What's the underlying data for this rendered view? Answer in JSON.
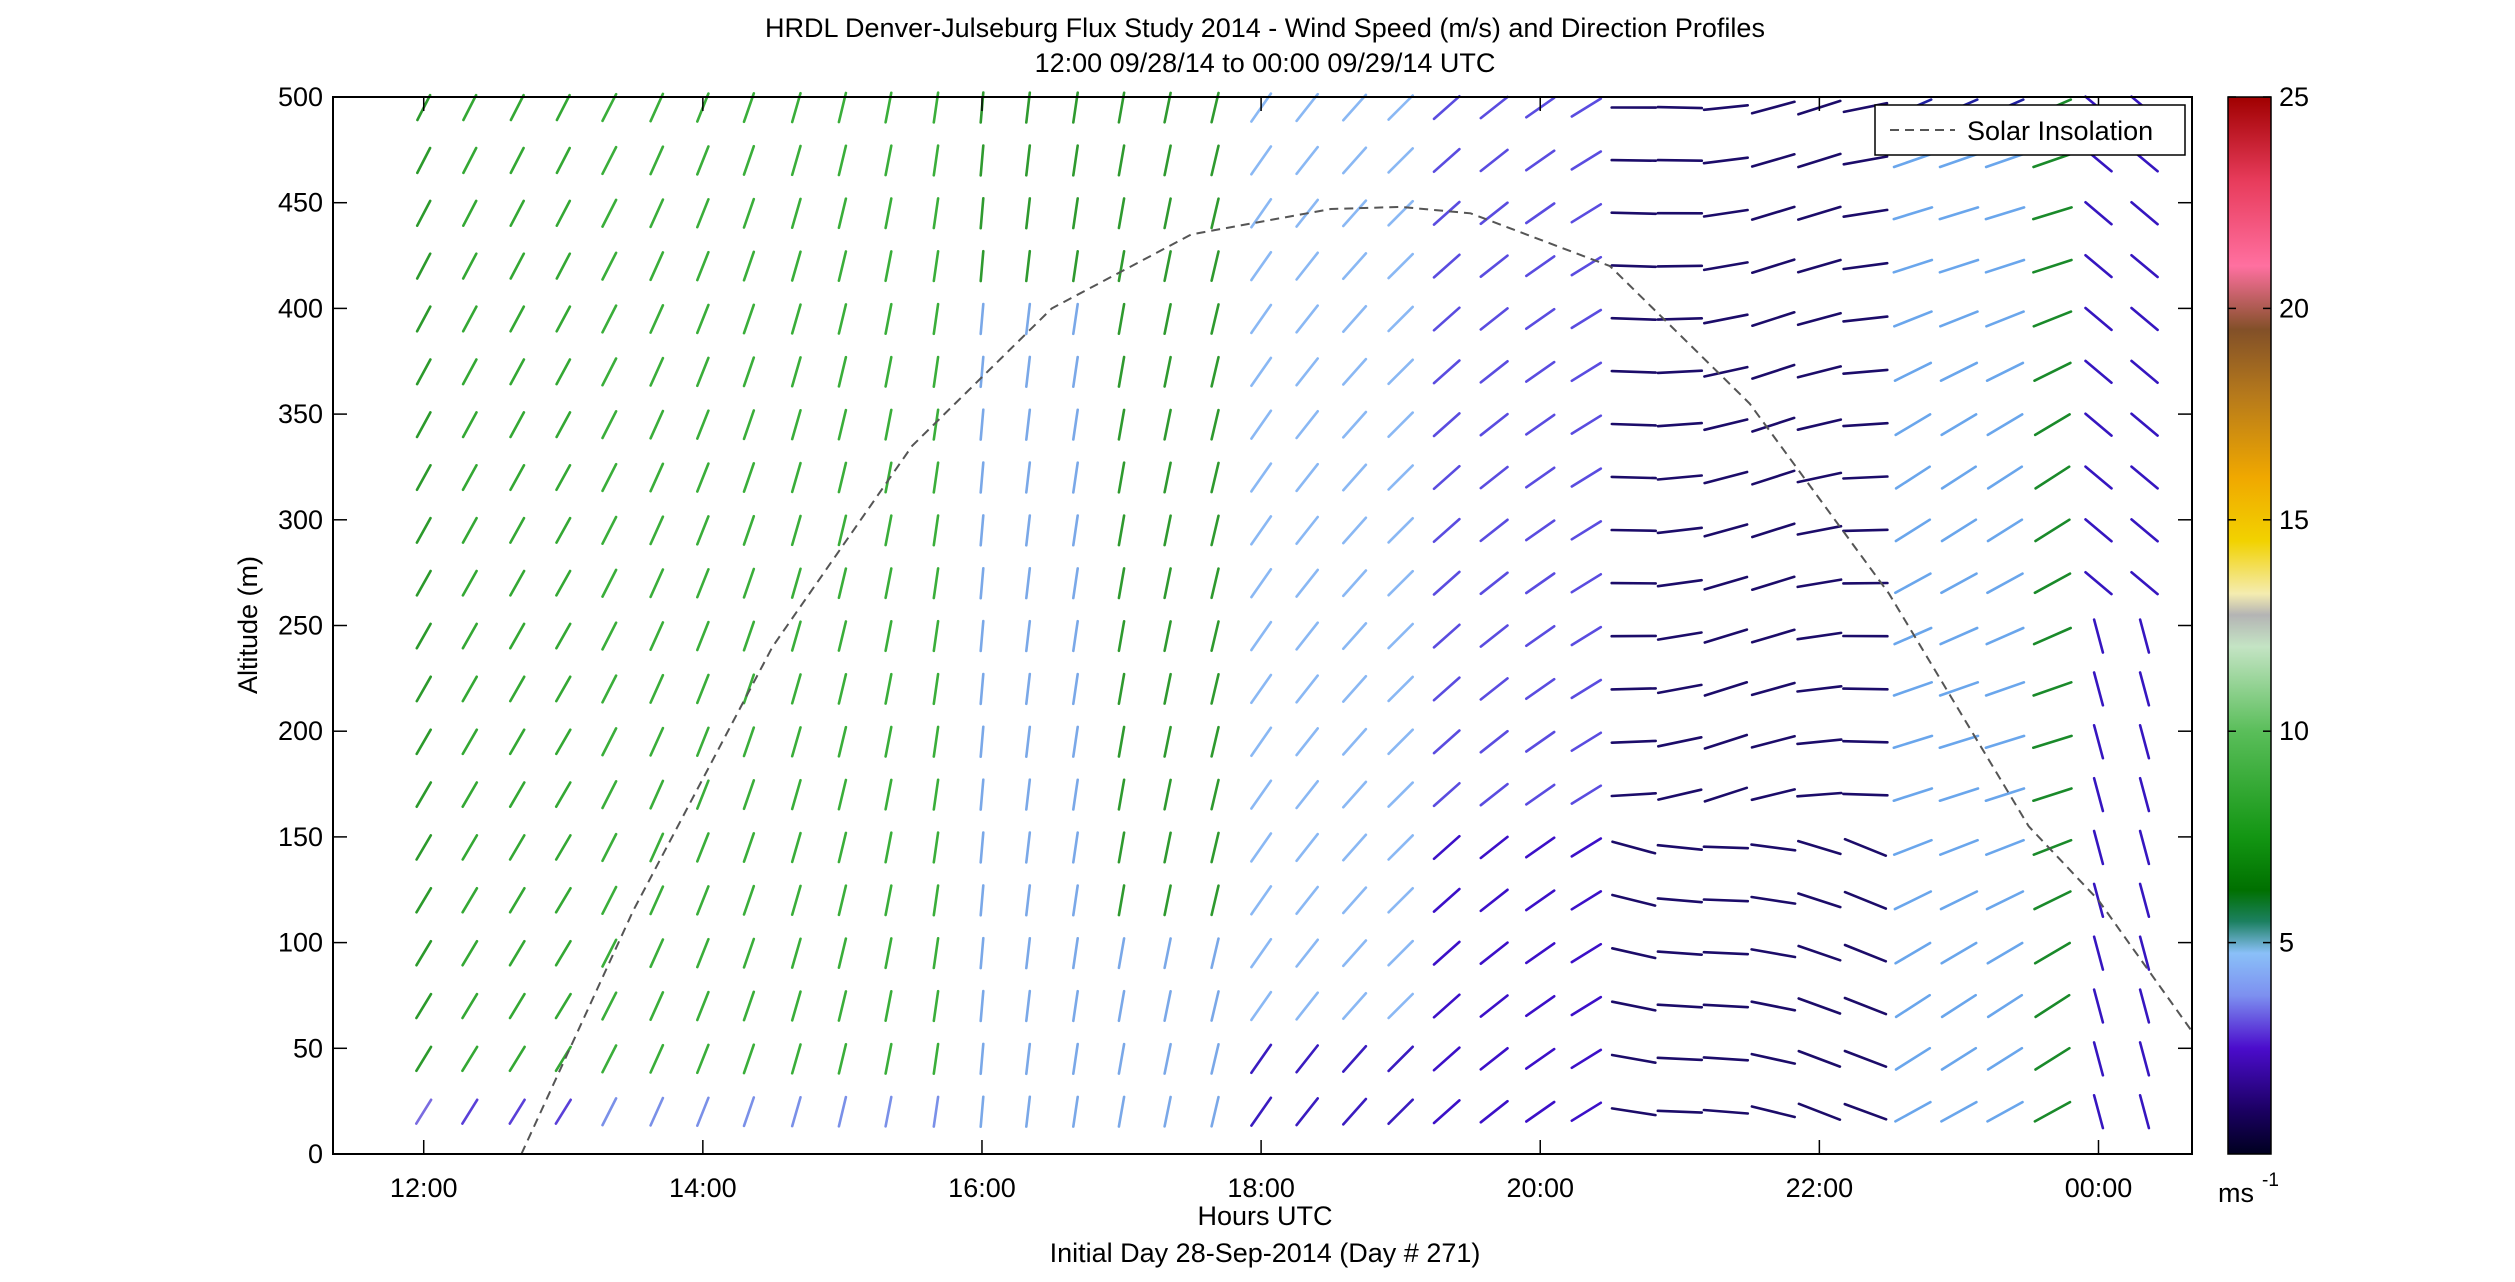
{
  "chart_data": {
    "type": "vector-field",
    "title": "HRDL Denver-Julseburg Flux Study 2014 - Wind Speed (m/s) and Direction Profiles",
    "subtitle": "12:00 09/28/14 to 00:00 09/29/14  UTC",
    "xlabel": "Hours UTC",
    "xlabel2": "Initial Day 28-Sep-2014 (Day # 271)",
    "ylabel": "Altitude (m)",
    "x_ticks": [
      {
        "value": 12,
        "label": "12:00"
      },
      {
        "value": 14,
        "label": "14:00"
      },
      {
        "value": 16,
        "label": "16:00"
      },
      {
        "value": 18,
        "label": "18:00"
      },
      {
        "value": 20,
        "label": "20:00"
      },
      {
        "value": 22,
        "label": "22:00"
      },
      {
        "value": 24,
        "label": "00:00"
      }
    ],
    "y_ticks": [
      {
        "value": 0,
        "label": "0"
      },
      {
        "value": 50,
        "label": "50"
      },
      {
        "value": 100,
        "label": "100"
      },
      {
        "value": 150,
        "label": "150"
      },
      {
        "value": 200,
        "label": "200"
      },
      {
        "value": 250,
        "label": "250"
      },
      {
        "value": 300,
        "label": "300"
      },
      {
        "value": 350,
        "label": "350"
      },
      {
        "value": 400,
        "label": "400"
      },
      {
        "value": 450,
        "label": "450"
      },
      {
        "value": 500,
        "label": "500"
      }
    ],
    "xlim": [
      11.35,
      24.67
    ],
    "ylim": [
      0,
      500
    ],
    "legend": {
      "entry": "Solar Insolation",
      "placement": "top-right"
    },
    "colorbar": {
      "unit": "ms",
      "unit_exp": "-1",
      "range": [
        0,
        25
      ],
      "ticks": [
        {
          "value": 5,
          "label": "5"
        },
        {
          "value": 10,
          "label": "10"
        },
        {
          "value": 15,
          "label": "15"
        },
        {
          "value": 20,
          "label": "20"
        },
        {
          "value": 25,
          "label": "25"
        }
      ]
    },
    "solar_insolation": {
      "x": [
        12.7,
        13.5,
        14.5,
        15.5,
        16.5,
        17.5,
        18.5,
        19.0,
        19.5,
        20.5,
        21.5,
        22.5,
        23.5,
        24.0,
        24.67
      ],
      "y": [
        0,
        115,
        240,
        335,
        400,
        435,
        447,
        448,
        445,
        420,
        355,
        265,
        155,
        120,
        58
      ]
    },
    "altitudes": [
      20,
      45,
      70,
      95,
      120,
      145,
      170,
      195,
      220,
      245,
      270,
      295,
      320,
      345,
      370,
      395,
      420,
      445,
      470,
      495
    ],
    "times": [
      12.0,
      12.33,
      12.67,
      13.0,
      13.33,
      13.67,
      14.0,
      14.33,
      14.67,
      15.0,
      15.33,
      15.67,
      16.0,
      16.33,
      16.67,
      17.0,
      17.33,
      17.67,
      18.0,
      18.33,
      18.67,
      19.0,
      19.33,
      19.67,
      20.0,
      20.33,
      20.67,
      21.0,
      21.33,
      21.67,
      22.0,
      22.33,
      22.67,
      23.0,
      23.33,
      23.67,
      24.0,
      24.33
    ]
  }
}
